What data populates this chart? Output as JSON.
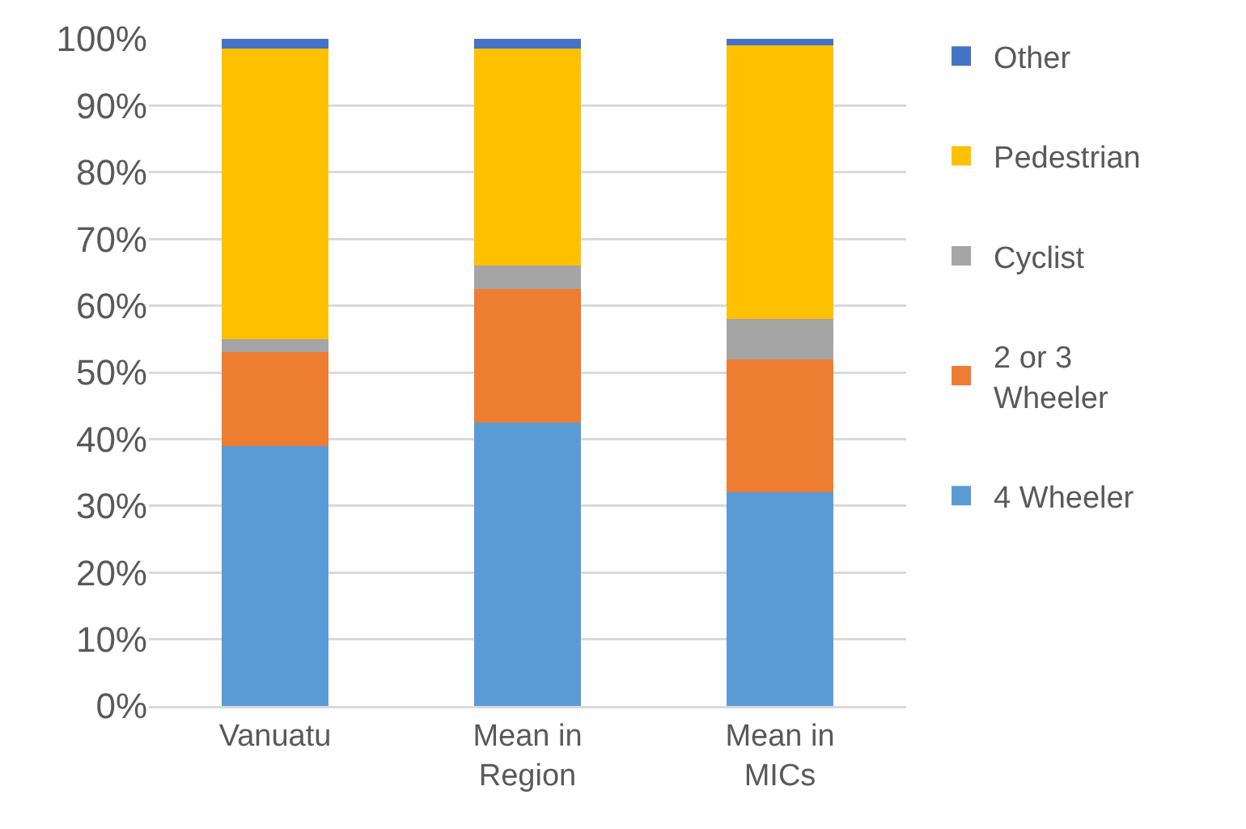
{
  "chart_data": {
    "type": "bar",
    "stacked": true,
    "categories": [
      "Vanuatu",
      "Mean in\nRegion",
      "Mean in\nMICs"
    ],
    "series": [
      {
        "name": "4 Wheeler",
        "color": "#5b9bd5",
        "values": [
          39,
          42.5,
          32
        ]
      },
      {
        "name": "2 or 3\nWheeler",
        "color": "#ed7d31",
        "values": [
          14,
          20,
          20
        ]
      },
      {
        "name": "Cyclist",
        "color": "#a5a5a5",
        "values": [
          2,
          3.5,
          6
        ]
      },
      {
        "name": "Pedestrian",
        "color": "#ffc000",
        "values": [
          43.5,
          32.5,
          41
        ]
      },
      {
        "name": "Other",
        "color": "#4472c4",
        "values": [
          1.5,
          1.5,
          1
        ]
      }
    ],
    "ylim": [
      0,
      100
    ],
    "yticks": [
      {
        "value": 0,
        "label": "0%"
      },
      {
        "value": 10,
        "label": "10%"
      },
      {
        "value": 20,
        "label": "20%"
      },
      {
        "value": 30,
        "label": "30%"
      },
      {
        "value": 40,
        "label": "40%"
      },
      {
        "value": 50,
        "label": "50%"
      },
      {
        "value": 60,
        "label": "60%"
      },
      {
        "value": 70,
        "label": "70%"
      },
      {
        "value": 80,
        "label": "80%"
      },
      {
        "value": 90,
        "label": "90%"
      },
      {
        "value": 100,
        "label": "100%"
      }
    ],
    "grid": "y",
    "legend": "right"
  }
}
